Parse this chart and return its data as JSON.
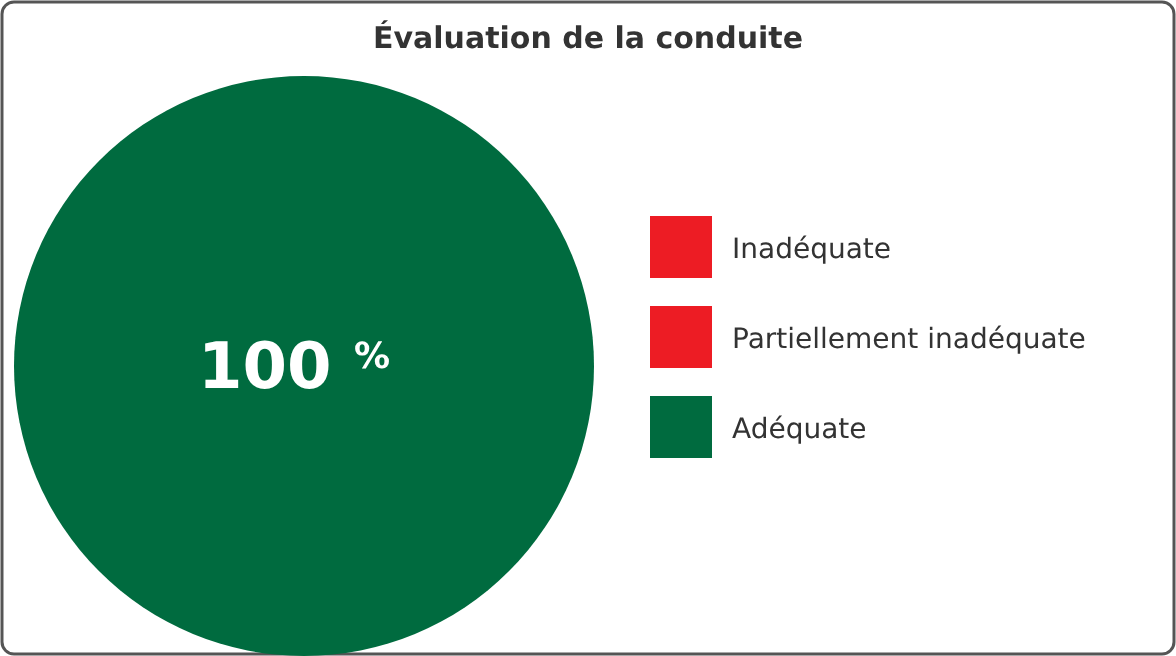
{
  "chart_data": {
    "type": "pie",
    "title": "Évaluation de la conduite",
    "categories": [
      "Inadéquate",
      "Partiellement inadéquate",
      "Adéquate"
    ],
    "values": [
      0,
      0,
      100
    ],
    "colors": [
      "#ed1c24",
      "#ed1c24",
      "#006b3f"
    ],
    "value_labels": [
      null,
      null,
      "100 $^{%}$"
    ],
    "legend": "right"
  }
}
